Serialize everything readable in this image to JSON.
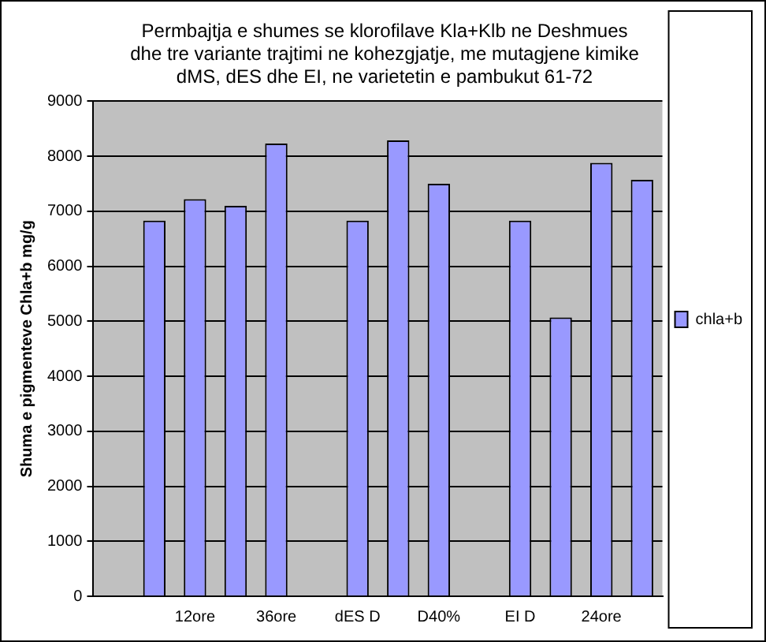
{
  "chart_data": {
    "type": "bar",
    "title": "Permbajtja e shumes se klorofilave Kla+Klb ne Deshmues dhe tre variante trajtimi ne kohezgjatje, me mutagjene kimike dMS, dES dhe EI, ne varietetin e pambukut 61-72",
    "ylabel": "Shuma e pigmenteve Chla+b mg/g",
    "categories": [
      null,
      null,
      "12ore",
      null,
      "36ore",
      null,
      "dES D",
      null,
      "D40%",
      null,
      "EI D",
      null,
      "24ore",
      null
    ],
    "series": [
      {
        "name": "chla+b",
        "color": "#9999ff",
        "values": [
          null,
          6830,
          7220,
          7100,
          8230,
          null,
          6830,
          8290,
          7500,
          null,
          6830,
          5070,
          7880,
          7570
        ]
      }
    ],
    "ylim": [
      0,
      9000
    ],
    "yticks": [
      0,
      1000,
      2000,
      3000,
      4000,
      5000,
      6000,
      7000,
      8000,
      9000
    ],
    "grid": "y",
    "legend": "right"
  }
}
